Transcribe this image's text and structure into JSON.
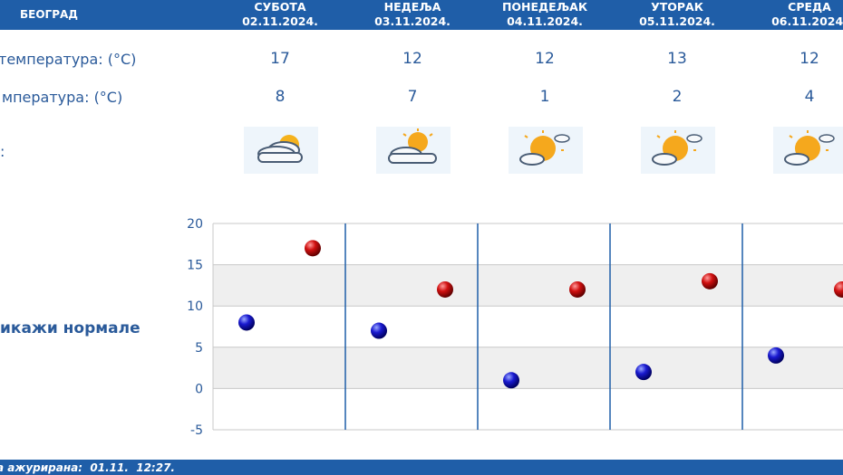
{
  "header": {
    "city": "БЕОГРАД",
    "days": [
      {
        "name": "СУБОТА",
        "date": "02.11.2024."
      },
      {
        "name": "НЕДЕЉА",
        "date": "03.11.2024."
      },
      {
        "name": "ПОНЕДЕЉАК",
        "date": "04.11.2024."
      },
      {
        "name": "УТОРАК",
        "date": "05.11.2024."
      },
      {
        "name": "СРЕДА",
        "date": "06.11.2024."
      }
    ]
  },
  "rows": {
    "max_label": "температура: (°C)",
    "min_label": "мпература: (°C)",
    "icon_label": ":",
    "max": [
      "17",
      "12",
      "12",
      "13",
      "12"
    ],
    "min": [
      "8",
      "7",
      "1",
      "2",
      "4"
    ]
  },
  "icons": [
    "partly-cloudy-icon",
    "partly-sunny-icon",
    "mostly-sunny-icon",
    "mostly-sunny-icon",
    "mostly-sunny-icon"
  ],
  "normals_label": "икажи нормале",
  "footer": {
    "text": "а ажурирана:  01.11.  12:27."
  },
  "colors": {
    "header": "#1f5ea8",
    "min_dot": "#1a1ad0",
    "max_dot": "#d01010"
  },
  "chart_data": {
    "type": "scatter",
    "ylim": [
      -5,
      20
    ],
    "yticks": [
      "20",
      "15",
      "10",
      "5",
      "0",
      "-5"
    ],
    "series": [
      {
        "values": [
          8,
          7,
          1,
          2,
          4
        ]
      },
      {
        "values": [
          17,
          12,
          12,
          13,
          12
        ]
      }
    ]
  }
}
